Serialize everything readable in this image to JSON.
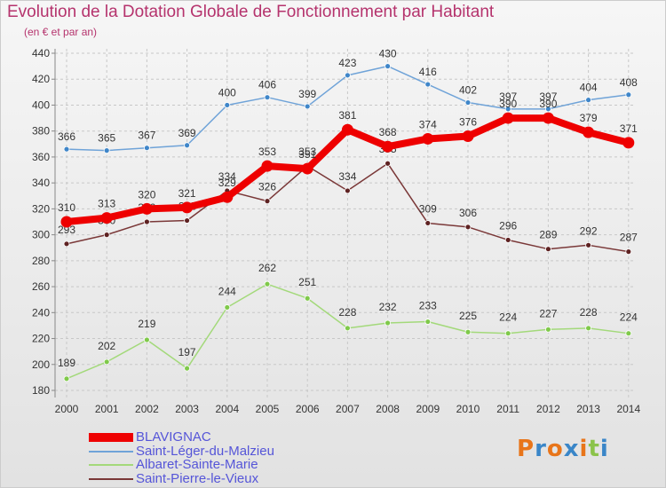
{
  "title": "Evolution de la Dotation Globale de Fonctionnement par Habitant",
  "subtitle": "(en € et par an)",
  "brand": {
    "letters": [
      "P",
      "r",
      "o",
      "x",
      "i",
      "t",
      "i"
    ],
    "colors": [
      "#e8751a",
      "#3a86c8",
      "#e8751a",
      "#3a86c8",
      "#e8751a",
      "#8bc34a",
      "#3a86c8"
    ]
  },
  "chart_data": {
    "type": "line",
    "x": [
      "2000",
      "2001",
      "2002",
      "2003",
      "2004",
      "2005",
      "2006",
      "2007",
      "2008",
      "2009",
      "2010",
      "2011",
      "2012",
      "2013",
      "2014"
    ],
    "ylim": [
      180,
      440
    ],
    "yticks": [
      180,
      200,
      220,
      240,
      260,
      280,
      300,
      320,
      340,
      360,
      380,
      400,
      420,
      440
    ],
    "grid": true,
    "legend_position": "bottom-left",
    "series": [
      {
        "name": "Saint-Léger-du-Malzieu",
        "color": "#6fa3d8",
        "marker": "#3f86c9",
        "values": [
          366,
          365,
          367,
          369,
          400,
          406,
          399,
          423,
          430,
          416,
          402,
          397,
          397,
          404,
          408
        ]
      },
      {
        "name": "Albaret-Sainte-Marie",
        "color": "#a3d97a",
        "marker": "#7fc94a",
        "values": [
          189,
          202,
          219,
          197,
          244,
          262,
          251,
          228,
          232,
          233,
          225,
          224,
          227,
          228,
          224
        ]
      },
      {
        "name": "Saint-Pierre-le-Vieux",
        "color": "#7a3838",
        "marker": "#5e2222",
        "values": [
          293,
          300,
          310,
          311,
          334,
          326,
          353,
          334,
          355,
          309,
          306,
          296,
          289,
          292,
          287
        ]
      },
      {
        "name": "BLAVIGNAC",
        "color": "#ee0000",
        "marker": "#ee0000",
        "values": [
          310,
          313,
          320,
          321,
          329,
          353,
          351,
          381,
          368,
          374,
          376,
          390,
          390,
          379,
          371
        ]
      }
    ],
    "legend_order": [
      "BLAVIGNAC",
      "Saint-Léger-du-Malzieu",
      "Albaret-Sainte-Marie",
      "Saint-Pierre-le-Vieux"
    ]
  }
}
